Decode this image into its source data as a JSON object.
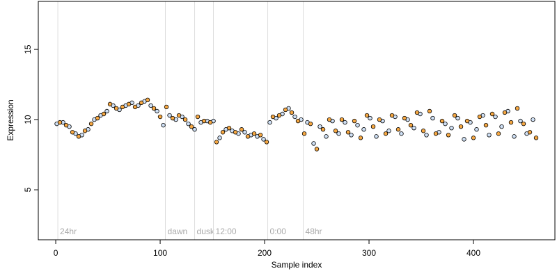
{
  "chart_data": {
    "type": "scatter",
    "xlabel": "Sample index",
    "ylabel": "Expression",
    "xlim": [
      -16.7,
      478
    ],
    "ylim": [
      1.44,
      18.42
    ],
    "xticks": [
      0,
      100,
      200,
      300,
      400
    ],
    "yticks": [
      5,
      10,
      15
    ],
    "markers": [
      {
        "x": 2,
        "label": "24hr"
      },
      {
        "x": 105,
        "label": "dawn"
      },
      {
        "x": 133,
        "label": "dusk"
      },
      {
        "x": 151,
        "label": "12:00"
      },
      {
        "x": 203,
        "label": "0:00"
      },
      {
        "x": 237,
        "label": "48hr"
      }
    ],
    "series": [
      {
        "color": "#cfe0f5",
        "x": [
          1,
          7,
          13,
          19,
          25,
          31,
          37,
          43,
          49,
          55,
          61,
          67,
          73,
          79,
          85,
          91,
          97,
          103,
          109,
          115,
          121,
          127,
          133,
          139,
          145,
          151,
          157,
          163,
          169,
          175,
          181,
          187,
          193,
          199,
          205,
          211,
          217,
          223,
          229,
          235,
          241,
          247,
          253,
          259,
          265,
          271,
          277,
          283,
          289,
          295,
          301,
          307,
          313,
          319,
          325,
          331,
          337,
          343,
          349,
          355,
          361,
          367,
          373,
          379,
          385,
          391,
          397,
          403,
          409,
          415,
          421,
          427,
          433,
          439,
          445,
          451,
          457
        ],
        "values": [
          9.7,
          9.8,
          9.5,
          9.0,
          8.9,
          9.3,
          10.0,
          10.3,
          10.6,
          11.0,
          10.7,
          11.0,
          11.2,
          11.0,
          11.3,
          11.0,
          10.6,
          9.6,
          10.3,
          10.0,
          10.2,
          9.7,
          9.3,
          9.8,
          9.9,
          9.9,
          8.7,
          9.3,
          9.2,
          9.0,
          9.1,
          8.9,
          8.8,
          8.6,
          9.8,
          10.1,
          10.4,
          10.8,
          10.2,
          10.0,
          9.8,
          8.3,
          9.5,
          8.8,
          9.9,
          9.0,
          9.8,
          8.9,
          9.6,
          9.3,
          10.1,
          8.8,
          9.9,
          9.2,
          10.2,
          9.0,
          10.0,
          9.4,
          10.4,
          8.9,
          10.1,
          9.1,
          9.7,
          9.4,
          10.1,
          8.6,
          9.8,
          9.3,
          10.3,
          8.9,
          10.2,
          9.5,
          10.6,
          8.8,
          9.9,
          9.0,
          10.0
        ]
      },
      {
        "color": "#f5a742",
        "x": [
          4,
          10,
          16,
          22,
          28,
          34,
          40,
          46,
          52,
          58,
          64,
          70,
          76,
          82,
          88,
          94,
          100,
          106,
          112,
          118,
          124,
          130,
          136,
          142,
          148,
          154,
          160,
          166,
          172,
          178,
          184,
          190,
          196,
          202,
          208,
          214,
          220,
          226,
          232,
          238,
          244,
          250,
          256,
          262,
          268,
          274,
          280,
          286,
          292,
          298,
          304,
          310,
          316,
          322,
          328,
          334,
          340,
          346,
          352,
          358,
          364,
          370,
          376,
          382,
          388,
          394,
          400,
          406,
          412,
          418,
          424,
          430,
          436,
          442,
          448,
          454,
          460
        ],
        "values": [
          9.8,
          9.6,
          9.1,
          8.8,
          9.2,
          9.7,
          10.1,
          10.4,
          11.1,
          10.8,
          10.9,
          11.1,
          10.9,
          11.2,
          11.4,
          10.8,
          10.2,
          10.9,
          10.1,
          10.3,
          10.0,
          9.5,
          10.2,
          9.9,
          9.8,
          8.4,
          9.1,
          9.4,
          9.1,
          9.3,
          8.8,
          9.0,
          8.9,
          8.4,
          10.2,
          10.3,
          10.7,
          10.5,
          9.9,
          9.0,
          9.7,
          7.9,
          9.3,
          10.0,
          9.2,
          10.0,
          9.1,
          9.9,
          8.7,
          10.3,
          9.5,
          10.0,
          9.0,
          10.3,
          9.3,
          10.1,
          9.6,
          10.5,
          9.2,
          10.6,
          9.0,
          9.9,
          8.9,
          10.3,
          9.5,
          9.9,
          8.7,
          10.2,
          9.6,
          10.4,
          9.0,
          10.5,
          9.8,
          10.8,
          9.7,
          9.1,
          8.7
        ]
      }
    ]
  }
}
